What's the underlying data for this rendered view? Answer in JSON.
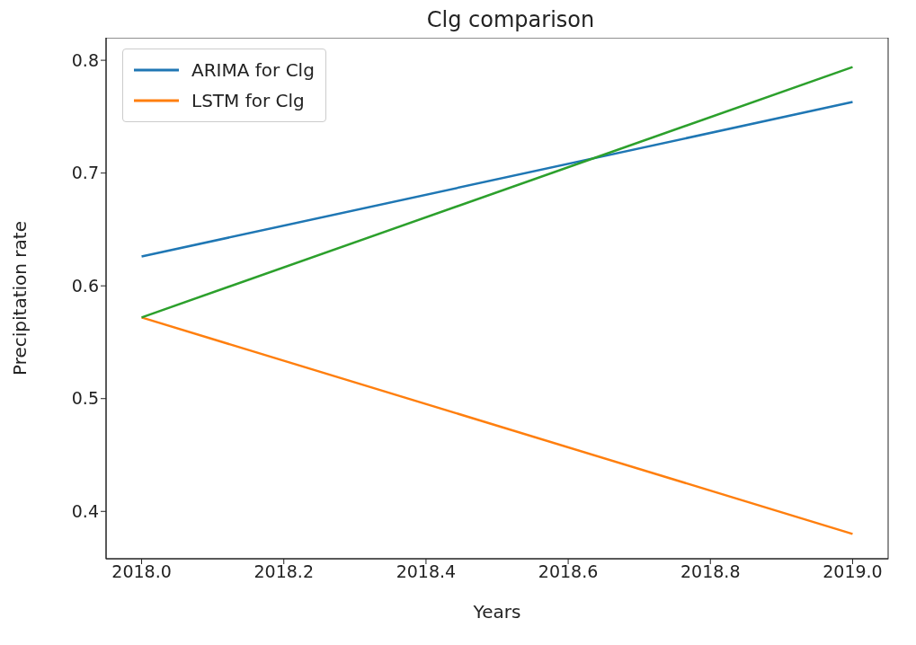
{
  "chart_data": {
    "type": "line",
    "title": "Clg comparison",
    "xlabel": "Years",
    "ylabel": "Precipitation rate",
    "x": [
      2018.0,
      2019.0
    ],
    "series": [
      {
        "name": "ARIMA for Clg",
        "color": "#1f77b4",
        "values": [
          0.626,
          0.763
        ]
      },
      {
        "name": "LSTM for Clg",
        "color": "#ff7f0e",
        "values": [
          0.572,
          0.38
        ]
      },
      {
        "color": "#2ca02c",
        "values": [
          0.572,
          0.794
        ]
      }
    ],
    "xlim": [
      2017.95,
      2019.05
    ],
    "xticks": [
      {
        "value": 2018.0,
        "label": "2018.0"
      },
      {
        "value": 2018.2,
        "label": "2018.2"
      },
      {
        "value": 2018.4,
        "label": "2018.4"
      },
      {
        "value": 2018.6,
        "label": "2018.6"
      },
      {
        "value": 2018.8,
        "label": "2018.8"
      },
      {
        "value": 2019.0,
        "label": "2019.0"
      }
    ],
    "ylim": [
      0.358,
      0.82
    ],
    "yticks": [
      0.4,
      0.5,
      0.6,
      0.7,
      0.8
    ],
    "grid": false,
    "legend": "top left",
    "marker": "none",
    "line_style": "solid"
  }
}
